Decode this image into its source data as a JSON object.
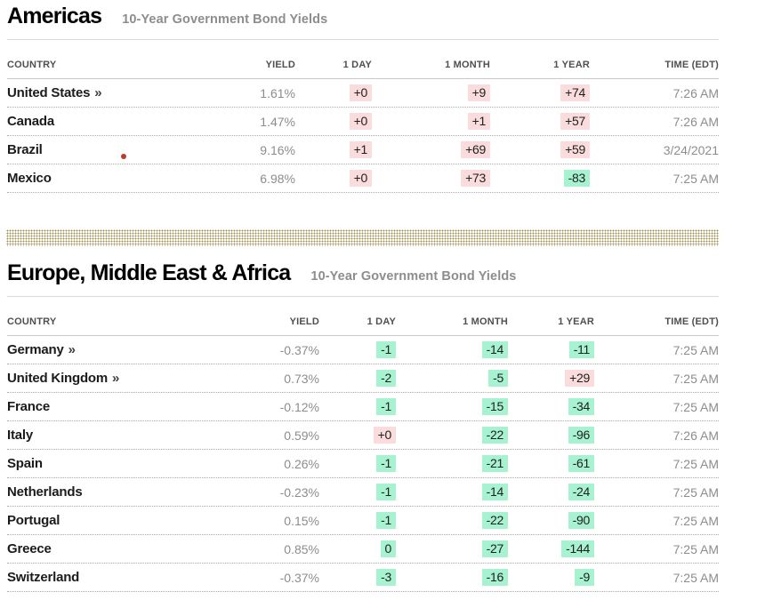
{
  "colors": {
    "title": "#000000",
    "muted_text": "#8d8d8d",
    "change_up_bg": "#f9dcdb",
    "change_down_bg": "#a6f2d1",
    "separator_gold": "#a5914f",
    "annotation_red": "#c0372e"
  },
  "country_link_marker": "»",
  "sections": [
    {
      "title": "Americas",
      "subtitle": "10-Year Government Bond Yields",
      "columns": [
        "COUNTRY",
        "YIELD",
        "1 DAY",
        "1 MONTH",
        "1 YEAR",
        "TIME (EDT)"
      ],
      "rows": [
        {
          "country": "United States",
          "link": true,
          "yield": "1.61%",
          "one_day": {
            "value": "+0",
            "tone": "up"
          },
          "one_month": {
            "value": "+9",
            "tone": "up"
          },
          "one_year": {
            "value": "+74",
            "tone": "up"
          },
          "time": "7:26 AM"
        },
        {
          "country": "Canada",
          "link": false,
          "yield": "1.47%",
          "one_day": {
            "value": "+0",
            "tone": "up"
          },
          "one_month": {
            "value": "+1",
            "tone": "up"
          },
          "one_year": {
            "value": "+57",
            "tone": "up"
          },
          "time": "7:26 AM"
        },
        {
          "country": "Brazil",
          "link": false,
          "yield": "9.16%",
          "one_day": {
            "value": "+1",
            "tone": "up"
          },
          "one_month": {
            "value": "+69",
            "tone": "up"
          },
          "one_year": {
            "value": "+59",
            "tone": "up"
          },
          "time": "3/24/2021"
        },
        {
          "country": "Mexico",
          "link": false,
          "yield": "6.98%",
          "one_day": {
            "value": "+0",
            "tone": "up"
          },
          "one_month": {
            "value": "+73",
            "tone": "up"
          },
          "one_year": {
            "value": "-83",
            "tone": "down"
          },
          "time": "7:25 AM"
        }
      ]
    },
    {
      "title": "Europe, Middle East & Africa",
      "subtitle": "10-Year Government Bond Yields",
      "columns": [
        "COUNTRY",
        "YIELD",
        "1 DAY",
        "1 MONTH",
        "1 YEAR",
        "TIME (EDT)"
      ],
      "rows": [
        {
          "country": "Germany",
          "link": true,
          "yield": "-0.37%",
          "one_day": {
            "value": "-1",
            "tone": "down"
          },
          "one_month": {
            "value": "-14",
            "tone": "down"
          },
          "one_year": {
            "value": "-11",
            "tone": "down"
          },
          "time": "7:25 AM"
        },
        {
          "country": "United Kingdom",
          "link": true,
          "yield": "0.73%",
          "one_day": {
            "value": "-2",
            "tone": "down"
          },
          "one_month": {
            "value": "-5",
            "tone": "down"
          },
          "one_year": {
            "value": "+29",
            "tone": "up"
          },
          "time": "7:25 AM"
        },
        {
          "country": "France",
          "link": false,
          "yield": "-0.12%",
          "one_day": {
            "value": "-1",
            "tone": "down"
          },
          "one_month": {
            "value": "-15",
            "tone": "down"
          },
          "one_year": {
            "value": "-34",
            "tone": "down"
          },
          "time": "7:25 AM"
        },
        {
          "country": "Italy",
          "link": false,
          "yield": "0.59%",
          "one_day": {
            "value": "+0",
            "tone": "up"
          },
          "one_month": {
            "value": "-22",
            "tone": "down"
          },
          "one_year": {
            "value": "-96",
            "tone": "down"
          },
          "time": "7:26 AM"
        },
        {
          "country": "Spain",
          "link": false,
          "yield": "0.26%",
          "one_day": {
            "value": "-1",
            "tone": "down"
          },
          "one_month": {
            "value": "-21",
            "tone": "down"
          },
          "one_year": {
            "value": "-61",
            "tone": "down"
          },
          "time": "7:25 AM"
        },
        {
          "country": "Netherlands",
          "link": false,
          "yield": "-0.23%",
          "one_day": {
            "value": "-1",
            "tone": "down"
          },
          "one_month": {
            "value": "-14",
            "tone": "down"
          },
          "one_year": {
            "value": "-24",
            "tone": "down"
          },
          "time": "7:25 AM"
        },
        {
          "country": "Portugal",
          "link": false,
          "yield": "0.15%",
          "one_day": {
            "value": "-1",
            "tone": "down"
          },
          "one_month": {
            "value": "-22",
            "tone": "down"
          },
          "one_year": {
            "value": "-90",
            "tone": "down"
          },
          "time": "7:25 AM"
        },
        {
          "country": "Greece",
          "link": false,
          "yield": "0.85%",
          "one_day": {
            "value": "0",
            "tone": "down"
          },
          "one_month": {
            "value": "-27",
            "tone": "down"
          },
          "one_year": {
            "value": "-144",
            "tone": "down"
          },
          "time": "7:25 AM"
        },
        {
          "country": "Switzerland",
          "link": false,
          "yield": "-0.37%",
          "one_day": {
            "value": "-3",
            "tone": "down"
          },
          "one_month": {
            "value": "-16",
            "tone": "down"
          },
          "one_year": {
            "value": "-9",
            "tone": "down"
          },
          "time": "7:25 AM"
        }
      ]
    }
  ]
}
